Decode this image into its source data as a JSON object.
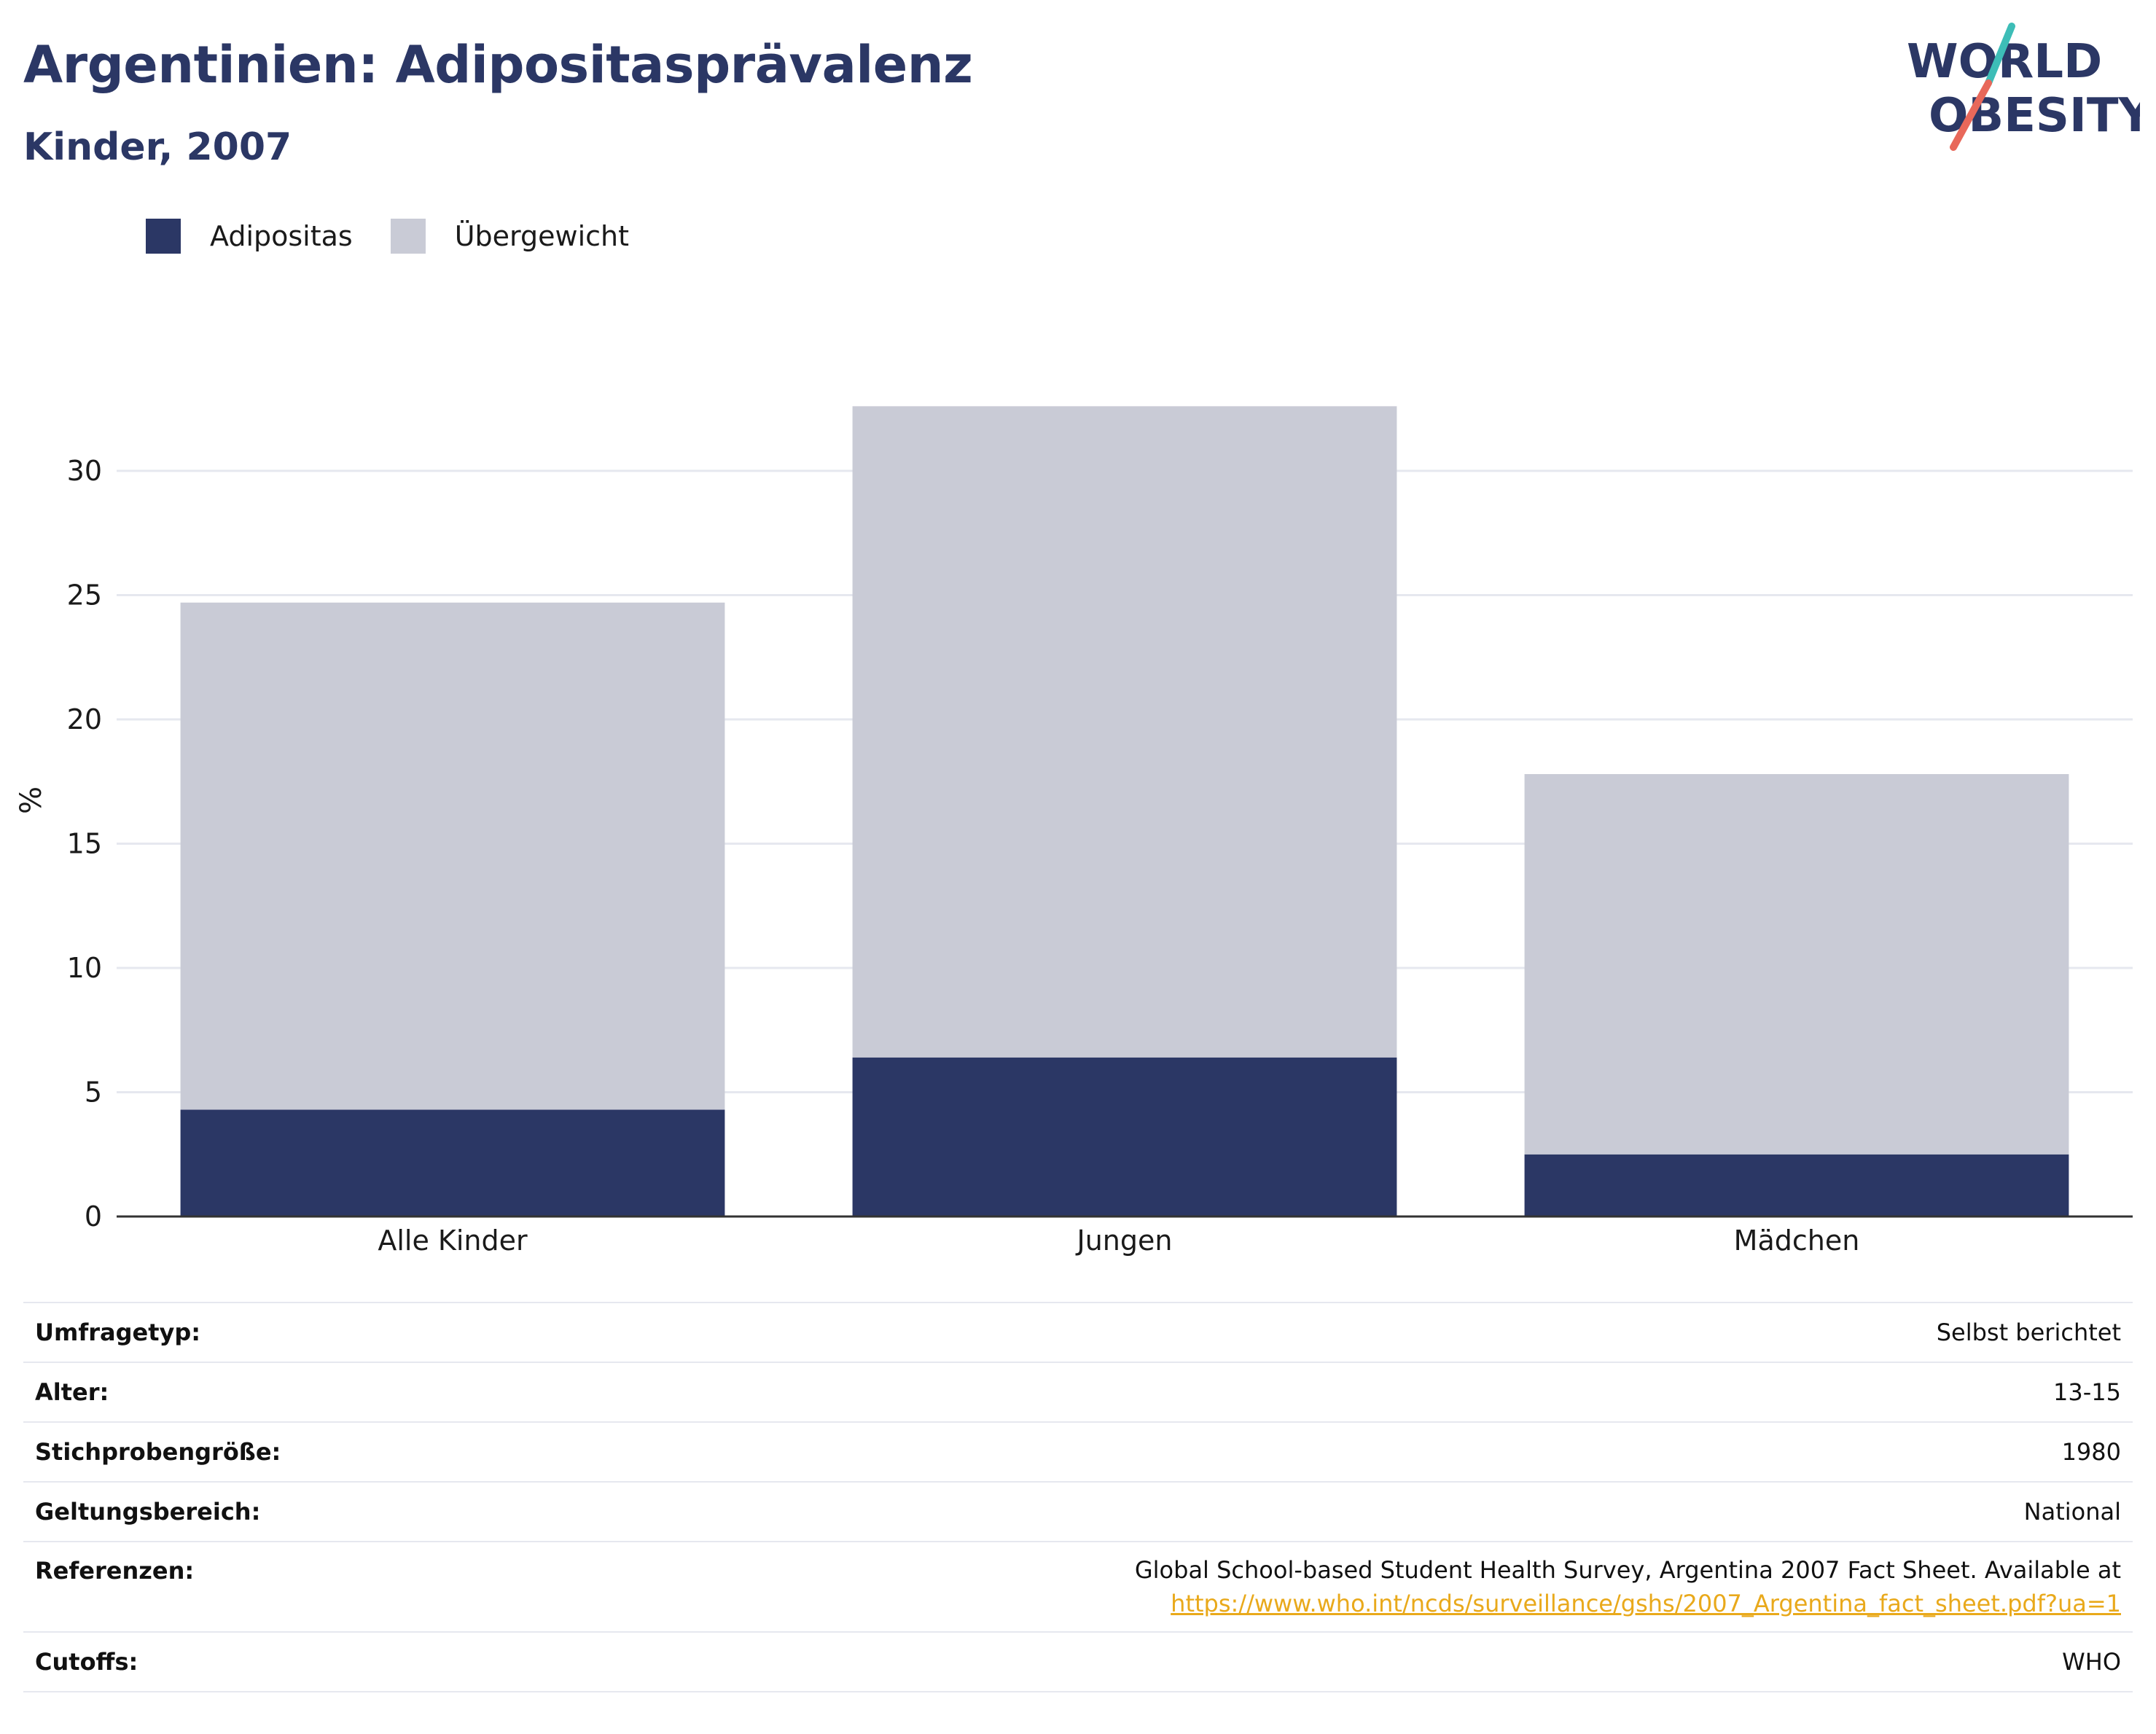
{
  "header": {
    "title": "Argentinien: Adipositasprävalenz",
    "subtitle": "Kinder, 2007"
  },
  "logo": {
    "line1": "WORLD",
    "line2": "OBESITY",
    "colors": {
      "text": "#2b3765",
      "slash_top": "#3dbdb7",
      "slash_bottom": "#e8685a"
    }
  },
  "colors": {
    "adipositas": "#2b3765",
    "uebergewicht": "#c9cbd6",
    "grid": "#e6e8ef",
    "axis": "#333333"
  },
  "chart_data": {
    "type": "bar",
    "stacked": true,
    "categories": [
      "Alle Kinder",
      "Jungen",
      "Mädchen"
    ],
    "series": [
      {
        "name": "Adipositas",
        "values": [
          4.3,
          6.4,
          2.5
        ]
      },
      {
        "name": "Übergewicht",
        "values": [
          20.4,
          26.2,
          15.3
        ]
      }
    ],
    "totals": [
      24.7,
      32.6,
      17.8
    ],
    "ylabel": "%",
    "ylim": [
      0,
      33.5
    ],
    "yticks": [
      0,
      5,
      10,
      15,
      20,
      25,
      30
    ],
    "grid": true,
    "legend": "top-left"
  },
  "info": {
    "rows": [
      {
        "key": "Umfragetyp:",
        "value": "Selbst berichtet"
      },
      {
        "key": "Alter:",
        "value": "13-15"
      },
      {
        "key": "Stichprobengröße:",
        "value": "1980"
      },
      {
        "key": "Geltungsbereich:",
        "value": "National"
      },
      {
        "key": "Referenzen:",
        "value": "Global School-based Student Health Survey, Argentina 2007 Fact Sheet. Available at",
        "link": "https://www.who.int/ncds/surveillance/gshs/2007_Argentina_fact_sheet.pdf?ua=1"
      },
      {
        "key": "Cutoffs:",
        "value": "WHO"
      }
    ]
  }
}
